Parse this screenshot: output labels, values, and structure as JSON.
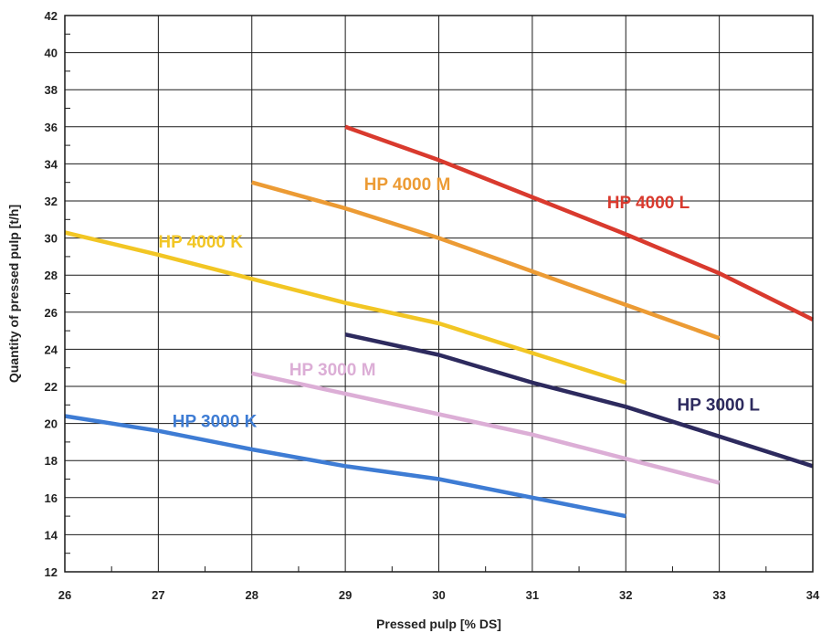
{
  "chart_data": {
    "type": "line",
    "title": "",
    "xlabel": "Pressed pulp [% DS]",
    "ylabel": "Quantity of pressed pulp [t/h]",
    "xlim": [
      26,
      34
    ],
    "ylim": [
      12,
      42
    ],
    "x_ticks": [
      26,
      27,
      28,
      29,
      30,
      31,
      32,
      33,
      34
    ],
    "y_ticks": [
      12,
      14,
      16,
      18,
      20,
      22,
      24,
      26,
      28,
      30,
      32,
      34,
      36,
      38,
      40,
      42
    ],
    "grid": true,
    "series": [
      {
        "name": "HP 4000 L",
        "color": "#d93a2e",
        "x": [
          29,
          30,
          31,
          32,
          33,
          34
        ],
        "y": [
          36,
          34.2,
          32.2,
          30.2,
          28.1,
          25.6
        ]
      },
      {
        "name": "HP 4000 M",
        "color": "#ec9b34",
        "x": [
          28,
          29,
          30,
          31,
          32,
          33
        ],
        "y": [
          33,
          31.6,
          30.0,
          28.2,
          26.4,
          24.6
        ]
      },
      {
        "name": "HP 4000 K",
        "color": "#f2c624",
        "x": [
          26,
          27,
          28,
          29,
          30,
          31,
          32
        ],
        "y": [
          30.3,
          29.1,
          27.8,
          26.5,
          25.4,
          23.8,
          22.2
        ]
      },
      {
        "name": "HP 3000 L",
        "color": "#2d2a5e",
        "x": [
          29,
          30,
          31,
          32,
          33,
          34
        ],
        "y": [
          24.8,
          23.7,
          22.2,
          20.9,
          19.3,
          17.7
        ]
      },
      {
        "name": "HP 3000 M",
        "color": "#dcaed6",
        "x": [
          28,
          29,
          30,
          31,
          32,
          33
        ],
        "y": [
          22.7,
          21.6,
          20.5,
          19.4,
          18.1,
          16.8
        ]
      },
      {
        "name": "HP 3000 K",
        "color": "#3e7cd4",
        "x": [
          26,
          27,
          28,
          29,
          30,
          31,
          32
        ],
        "y": [
          20.4,
          19.6,
          18.6,
          17.7,
          17.0,
          16.0,
          15.0
        ]
      }
    ],
    "labels": [
      {
        "text": "HP 4000 L",
        "color": "#d93a2e",
        "x": 31.8,
        "y": 31.6
      },
      {
        "text": "HP 4000 M",
        "color": "#ec9b34",
        "x": 29.2,
        "y": 32.6
      },
      {
        "text": "HP 4000 K",
        "color": "#f2c624",
        "x": 27.0,
        "y": 29.5
      },
      {
        "text": "HP 3000 L",
        "color": "#2d2a5e",
        "x": 32.55,
        "y": 20.7
      },
      {
        "text": "HP 3000 M",
        "color": "#dcaed6",
        "x": 28.4,
        "y": 22.6
      },
      {
        "text": "HP 3000 K",
        "color": "#3e7cd4",
        "x": 27.15,
        "y": 19.8
      }
    ]
  }
}
